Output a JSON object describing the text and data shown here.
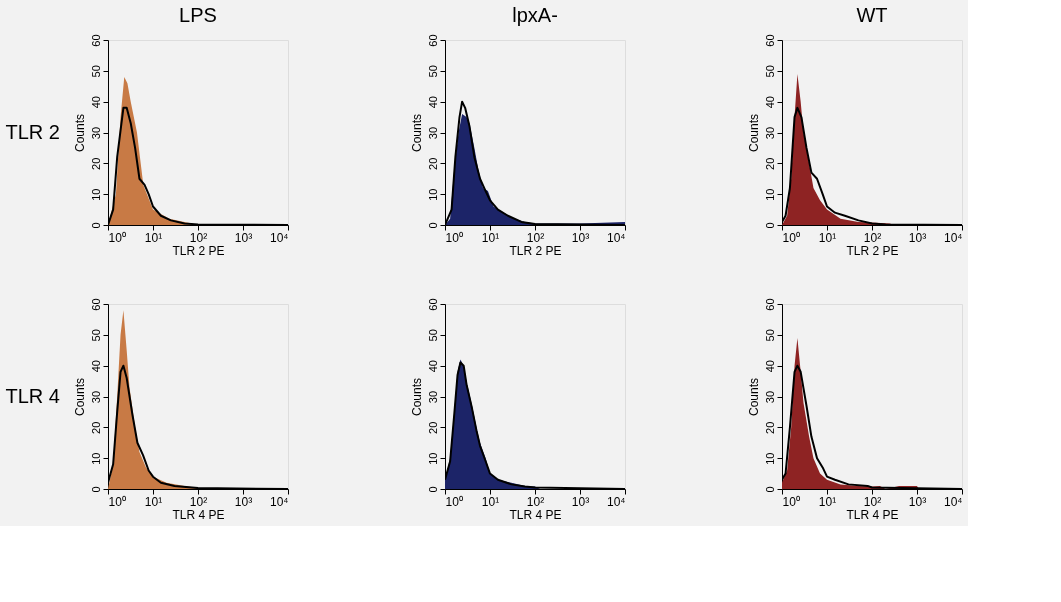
{
  "chart_data": [
    {
      "type": "area",
      "title": "LPS",
      "xlabel": "TLR 2 PE",
      "ylabel": "Counts",
      "annotations": [
        "TLR 2"
      ],
      "log": "x",
      "xlim": [
        1,
        10000
      ],
      "ylim": [
        0,
        60
      ],
      "xticks": [
        {
          "value": 1,
          "label": "10⁰"
        },
        {
          "value": 10,
          "label": "10¹"
        },
        {
          "value": 100,
          "label": "10²"
        },
        {
          "value": 1000,
          "label": "10³"
        },
        {
          "value": 10000,
          "label": "10⁴"
        }
      ],
      "yticks": [
        0,
        10,
        20,
        30,
        40,
        50,
        60
      ],
      "series": [
        {
          "color": "#c87a45",
          "x": [
            1,
            1.5,
            1.9,
            2.3,
            2.7,
            3.2,
            4.4,
            6.1,
            10,
            23,
            72,
            100
          ],
          "values": [
            0,
            10,
            35,
            48,
            46,
            40,
            30,
            13,
            5,
            2,
            0.5,
            0
          ]
        },
        {
          "type": "line",
          "color": "#000000",
          "x": [
            1,
            1.3,
            1.6,
            2.2,
            2.6,
            3.2,
            4,
            5,
            6.5,
            8,
            10,
            15,
            25,
            50,
            100,
            10000
          ],
          "values": [
            0,
            5,
            22,
            38,
            38,
            33,
            25,
            15,
            13,
            10,
            6,
            3,
            1.5,
            0.5,
            0.2,
            0
          ]
        }
      ]
    },
    {
      "type": "area",
      "title": "lpxA-",
      "xlabel": "TLR 2 PE",
      "ylabel": "Counts",
      "log": "x",
      "xlim": [
        1,
        10000
      ],
      "ylim": [
        0,
        60
      ],
      "xticks": [
        {
          "value": 1,
          "label": "10⁰"
        },
        {
          "value": 10,
          "label": "10¹"
        },
        {
          "value": 100,
          "label": "10²"
        },
        {
          "value": 1000,
          "label": "10³"
        },
        {
          "value": 10000,
          "label": "10⁴"
        }
      ],
      "yticks": [
        0,
        10,
        20,
        30,
        40,
        50,
        60
      ],
      "series": [
        {
          "color": "#1c2468",
          "x": [
            1,
            1.3,
            1.6,
            2,
            2.4,
            3,
            3.5,
            4.5,
            5.5,
            7,
            9,
            12,
            20,
            35,
            60,
            100,
            300,
            1000,
            10000
          ],
          "values": [
            0,
            2,
            18,
            30,
            36,
            35,
            33,
            25,
            18,
            12,
            11,
            6,
            4,
            2,
            1,
            0.5,
            0.5,
            0.5,
            1
          ]
        },
        {
          "type": "line",
          "color": "#000000",
          "x": [
            1,
            1.4,
            1.7,
            2.1,
            2.4,
            2.8,
            3.5,
            4.5,
            6,
            8,
            10,
            15,
            25,
            50,
            100,
            10000
          ],
          "values": [
            0,
            5,
            22,
            35,
            40,
            38,
            32,
            22,
            15,
            11,
            8,
            5,
            3,
            1,
            0.3,
            0
          ]
        }
      ]
    },
    {
      "type": "area",
      "title": "WT",
      "xlabel": "TLR 2 PE",
      "ylabel": "Counts",
      "log": "x",
      "xlim": [
        1,
        10000
      ],
      "ylim": [
        0,
        60
      ],
      "xticks": [
        {
          "value": 1,
          "label": "10⁰"
        },
        {
          "value": 10,
          "label": "10¹"
        },
        {
          "value": 100,
          "label": "10²"
        },
        {
          "value": 1000,
          "label": "10³"
        },
        {
          "value": 10000,
          "label": "10⁴"
        }
      ],
      "yticks": [
        0,
        10,
        20,
        30,
        40,
        50,
        60
      ],
      "series": [
        {
          "color": "#8e2323",
          "x": [
            1,
            1.3,
            1.6,
            1.9,
            2.2,
            2.6,
            3,
            4,
            5,
            7,
            10,
            20,
            50,
            100,
            250,
            300
          ],
          "values": [
            0,
            3,
            15,
            35,
            49,
            40,
            30,
            20,
            12,
            8,
            5,
            2,
            1,
            0.8,
            0.5,
            0
          ]
        },
        {
          "type": "line",
          "color": "#000000",
          "x": [
            1,
            1.2,
            1.5,
            1.9,
            2.2,
            2.7,
            3.5,
            4.5,
            6,
            8,
            10,
            15,
            25,
            50,
            100,
            200,
            10000
          ],
          "values": [
            1,
            3,
            12,
            35,
            38,
            35,
            25,
            17,
            15,
            10,
            6,
            4,
            3,
            1.5,
            0.5,
            0.2,
            0
          ]
        }
      ]
    },
    {
      "type": "area",
      "xlabel": "TLR 4 PE",
      "ylabel": "Counts",
      "annotations": [
        "TLR 4"
      ],
      "log": "x",
      "xlim": [
        1,
        10000
      ],
      "ylim": [
        0,
        60
      ],
      "xticks": [
        {
          "value": 1,
          "label": "10⁰"
        },
        {
          "value": 10,
          "label": "10¹"
        },
        {
          "value": 100,
          "label": "10²"
        },
        {
          "value": 1000,
          "label": "10³"
        },
        {
          "value": 10000,
          "label": "10⁴"
        }
      ],
      "yticks": [
        0,
        10,
        20,
        30,
        40,
        50,
        60
      ],
      "series": [
        {
          "color": "#c87a45",
          "x": [
            1,
            1.3,
            1.6,
            1.9,
            2.2,
            2.6,
            3,
            4,
            5,
            7,
            10,
            20,
            50,
            100,
            150
          ],
          "values": [
            0,
            8,
            30,
            50,
            58,
            45,
            33,
            20,
            12,
            7,
            4,
            2,
            1,
            0.3,
            0
          ]
        },
        {
          "type": "line",
          "color": "#000000",
          "x": [
            1,
            1.3,
            1.6,
            1.9,
            2.2,
            2.6,
            3.5,
            4.5,
            6,
            8,
            10,
            15,
            30,
            100,
            10000
          ],
          "values": [
            2,
            8,
            25,
            38,
            40,
            36,
            24,
            15,
            11,
            6,
            4,
            2,
            1,
            0.3,
            0
          ]
        }
      ]
    },
    {
      "type": "area",
      "xlabel": "TLR 4 PE",
      "ylabel": "Counts",
      "log": "x",
      "xlim": [
        1,
        10000
      ],
      "ylim": [
        0,
        60
      ],
      "xticks": [
        {
          "value": 1,
          "label": "10⁰"
        },
        {
          "value": 10,
          "label": "10¹"
        },
        {
          "value": 100,
          "label": "10²"
        },
        {
          "value": 1000,
          "label": "10³"
        },
        {
          "value": 10000,
          "label": "10⁴"
        }
      ],
      "yticks": [
        0,
        10,
        20,
        30,
        40,
        50,
        60
      ],
      "series": [
        {
          "color": "#1c2468",
          "x": [
            1,
            1.3,
            1.6,
            1.9,
            2.2,
            2.6,
            3,
            4,
            5,
            6,
            8,
            10,
            15,
            30,
            60,
            100,
            130
          ],
          "values": [
            3,
            10,
            25,
            38,
            42,
            40,
            35,
            27,
            20,
            15,
            10,
            5,
            3,
            2,
            1,
            0.8,
            0
          ]
        },
        {
          "type": "line",
          "color": "#000000",
          "x": [
            1,
            1.3,
            1.6,
            1.9,
            2.2,
            2.6,
            3,
            4,
            5,
            6,
            8,
            10,
            15,
            30,
            60,
            100,
            10000
          ],
          "values": [
            3,
            9,
            24,
            37,
            41,
            40,
            34,
            26,
            19,
            14,
            9,
            5,
            3,
            1.5,
            0.8,
            0.5,
            0
          ]
        }
      ]
    },
    {
      "type": "area",
      "xlabel": "TLR 4 PE",
      "ylabel": "Counts",
      "log": "x",
      "xlim": [
        1,
        10000
      ],
      "ylim": [
        0,
        60
      ],
      "xticks": [
        {
          "value": 1,
          "label": "10⁰"
        },
        {
          "value": 10,
          "label": "10¹"
        },
        {
          "value": 100,
          "label": "10²"
        },
        {
          "value": 1000,
          "label": "10³"
        },
        {
          "value": 10000,
          "label": "10⁴"
        }
      ],
      "yticks": [
        0,
        10,
        20,
        30,
        40,
        50,
        60
      ],
      "series": [
        {
          "color": "#8e2323",
          "x": [
            1,
            1.3,
            1.6,
            1.9,
            2.2,
            2.6,
            3,
            4,
            5,
            7,
            10,
            20,
            50,
            100,
            150,
            200,
            400,
            1000,
            1100
          ],
          "values": [
            2,
            6,
            20,
            40,
            49,
            38,
            28,
            17,
            10,
            5,
            3,
            1.5,
            1,
            0.8,
            1,
            0,
            1,
            1,
            0
          ]
        },
        {
          "type": "line",
          "color": "#000000",
          "x": [
            1,
            1.2,
            1.5,
            1.9,
            2.2,
            2.6,
            3.5,
            4.5,
            6,
            8,
            10,
            15,
            30,
            80,
            100,
            10000
          ],
          "values": [
            3,
            5,
            20,
            38,
            40,
            38,
            27,
            17,
            10,
            7,
            4,
            3,
            1.5,
            1,
            0.5,
            0
          ]
        }
      ]
    }
  ]
}
